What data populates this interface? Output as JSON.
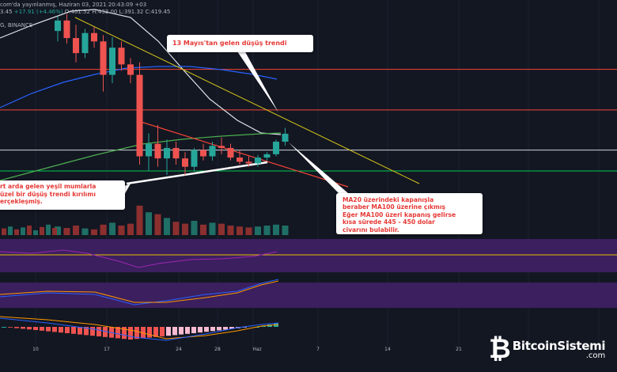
{
  "header": {
    "line1": "com'da yayınlanmış, Haziran 03, 2021 20:43:09 +03",
    "line2_left": "3.45",
    "line2_change": "+17.91 (+4.46%)",
    "line2_o": "O:401.52",
    "line2_h": "H:433.00",
    "line2_l": "L:391.32",
    "line2_c": "C:419.45",
    "line3": "G, BINANCE"
  },
  "callouts": {
    "top": "13 Mayıs'tan gelen düşüş trendi",
    "left": [
      "rt arda gelen yeşil mumlarla",
      "üzel bir düşüş trendi kırılımı",
      "erçekleşmiş."
    ],
    "right": [
      "MA20 üzerindeki kapanışla",
      "beraber MA100 üzerine çıkmış",
      "Eğer MA100 üzeri kapanış gelirse",
      "kısa sürede 445 - 450 dolar",
      "civarını bulabilir."
    ]
  },
  "logo": {
    "name": "BitcoinSistemi",
    "suffix": ".com",
    "mark": "₿"
  },
  "colors": {
    "background": "#131722",
    "bull": "#26a69a",
    "bear": "#ef5350",
    "ma20": "#e0e3eb",
    "ma50": "#2962ff",
    "ma100": "#4caf50",
    "downtrend": "#d4c51a",
    "resistance": "#f44336",
    "support": "#00c853",
    "indicator_band": "#3b1f5f"
  },
  "chart_data": {
    "type": "candlestick",
    "x_tick_labels": [
      "10",
      "17",
      "24",
      "28",
      "Haz",
      "7",
      "14",
      "21"
    ],
    "note_values_are_price_estimates": false,
    "candles": [
      {
        "o": 665,
        "h": 700,
        "l": 640,
        "c": 690
      },
      {
        "o": 690,
        "h": 705,
        "l": 635,
        "c": 648
      },
      {
        "o": 648,
        "h": 680,
        "l": 590,
        "c": 612
      },
      {
        "o": 612,
        "h": 670,
        "l": 600,
        "c": 660
      },
      {
        "o": 660,
        "h": 675,
        "l": 625,
        "c": 640
      },
      {
        "o": 640,
        "h": 655,
        "l": 520,
        "c": 560
      },
      {
        "o": 560,
        "h": 650,
        "l": 540,
        "c": 625
      },
      {
        "o": 625,
        "h": 640,
        "l": 570,
        "c": 585
      },
      {
        "o": 585,
        "h": 600,
        "l": 540,
        "c": 560
      },
      {
        "o": 560,
        "h": 590,
        "l": 345,
        "c": 365
      },
      {
        "o": 365,
        "h": 420,
        "l": 330,
        "c": 395
      },
      {
        "o": 395,
        "h": 440,
        "l": 340,
        "c": 360
      },
      {
        "o": 360,
        "h": 405,
        "l": 320,
        "c": 385
      },
      {
        "o": 385,
        "h": 400,
        "l": 345,
        "c": 360
      },
      {
        "o": 360,
        "h": 375,
        "l": 320,
        "c": 340
      },
      {
        "o": 340,
        "h": 385,
        "l": 330,
        "c": 380
      },
      {
        "o": 380,
        "h": 395,
        "l": 355,
        "c": 365
      },
      {
        "o": 365,
        "h": 400,
        "l": 355,
        "c": 390
      },
      {
        "o": 390,
        "h": 410,
        "l": 370,
        "c": 385
      },
      {
        "o": 385,
        "h": 395,
        "l": 355,
        "c": 362
      },
      {
        "o": 362,
        "h": 380,
        "l": 345,
        "c": 352
      },
      {
        "o": 352,
        "h": 365,
        "l": 340,
        "c": 348
      },
      {
        "o": 348,
        "h": 368,
        "l": 340,
        "c": 362
      },
      {
        "o": 362,
        "h": 375,
        "l": 355,
        "c": 370
      },
      {
        "o": 370,
        "h": 405,
        "l": 365,
        "c": 400
      },
      {
        "o": 400,
        "h": 433,
        "l": 391,
        "c": 419
      }
    ],
    "volume": [
      18,
      15,
      20,
      14,
      12,
      22,
      26,
      20,
      24,
      62,
      48,
      44,
      36,
      28,
      24,
      30,
      22,
      26,
      24,
      20,
      18,
      16,
      18,
      20,
      22,
      20
    ],
    "horizontal_levels": [
      {
        "name": "resistance-upper",
        "value": 573,
        "color": "#f44336"
      },
      {
        "name": "resistance-lower",
        "value": 476,
        "color": "#f44336"
      },
      {
        "name": "mid-level",
        "value": 380,
        "color": "#d1d4dc"
      },
      {
        "name": "support",
        "value": 330,
        "color": "#00c853"
      }
    ],
    "ylim": [
      275,
      705
    ]
  }
}
